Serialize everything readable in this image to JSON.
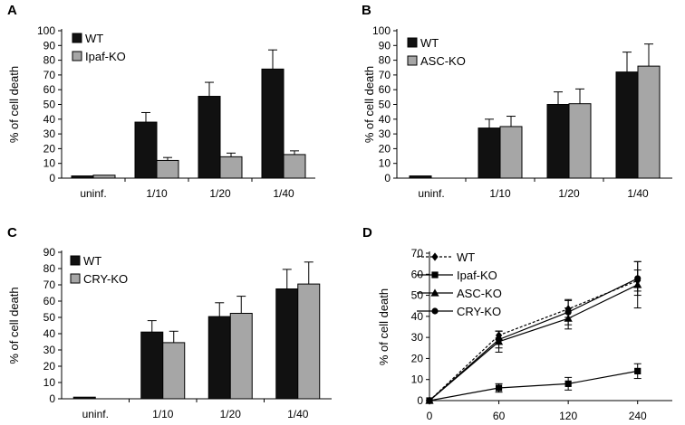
{
  "chart_data": [
    {
      "panel": "A",
      "type": "bar",
      "ylabel": "% of cell death",
      "ylim": [
        0,
        100
      ],
      "yticks": [
        0,
        10,
        20,
        30,
        40,
        50,
        60,
        70,
        80,
        90,
        100
      ],
      "categories": [
        "uninf.",
        "1/10",
        "1/20",
        "1/40"
      ],
      "legend_position": "top-left",
      "series": [
        {
          "name": "WT",
          "color": "#111111",
          "values": [
            1.5,
            38,
            55.5,
            74
          ],
          "errors": [
            0,
            6.5,
            9.5,
            13
          ]
        },
        {
          "name": "Ipaf-KO",
          "color": "#a6a6a6",
          "values": [
            2,
            12,
            14.5,
            16
          ],
          "errors": [
            0,
            2,
            2.5,
            2.5
          ]
        }
      ]
    },
    {
      "panel": "B",
      "type": "bar",
      "ylabel": "% of cell death",
      "ylim": [
        0,
        100
      ],
      "yticks": [
        0,
        10,
        20,
        30,
        40,
        50,
        60,
        70,
        80,
        90,
        100
      ],
      "categories": [
        "uninf.",
        "1/10",
        "1/20",
        "1/40"
      ],
      "legend_position": "top-left",
      "series": [
        {
          "name": "WT",
          "color": "#111111",
          "values": [
            1.5,
            34,
            50,
            72
          ],
          "errors": [
            0,
            6,
            8.5,
            13.5
          ]
        },
        {
          "name": "ASC-KO",
          "color": "#a6a6a6",
          "values": [
            null,
            35,
            50.5,
            76
          ],
          "errors": [
            0,
            7,
            10,
            15
          ]
        }
      ]
    },
    {
      "panel": "C",
      "type": "bar",
      "ylabel": "% of cell death",
      "ylim": [
        0,
        90
      ],
      "yticks": [
        0,
        10,
        20,
        30,
        40,
        50,
        60,
        70,
        80,
        90
      ],
      "categories": [
        "uninf.",
        "1/10",
        "1/20",
        "1/40"
      ],
      "legend_position": "top-left",
      "series": [
        {
          "name": "WT",
          "color": "#111111",
          "values": [
            1,
            41,
            50.5,
            67.5
          ],
          "errors": [
            0,
            7,
            8.5,
            12
          ]
        },
        {
          "name": "CRY-KO",
          "color": "#a6a6a6",
          "values": [
            null,
            34.5,
            52.5,
            70.5
          ],
          "errors": [
            0,
            7,
            10.5,
            13.5
          ]
        }
      ]
    },
    {
      "panel": "D",
      "type": "line",
      "ylabel": "% of cell death",
      "ylim": [
        0,
        70
      ],
      "yticks": [
        0,
        10,
        20,
        30,
        40,
        50,
        60,
        70
      ],
      "x": [
        0,
        60,
        120,
        240
      ],
      "xticks": [
        "0",
        "60",
        "120",
        "240"
      ],
      "legend_position": "top-left",
      "series": [
        {
          "name": "WT",
          "marker": "diamond",
          "dashed": true,
          "values": [
            0,
            31,
            43.5,
            57
          ],
          "errors": [
            0,
            2,
            4,
            5
          ]
        },
        {
          "name": "Ipaf-KO",
          "marker": "square",
          "dashed": false,
          "values": [
            0,
            6,
            8,
            14
          ],
          "errors": [
            0,
            2,
            3,
            3.5
          ]
        },
        {
          "name": "ASC-KO",
          "marker": "triangle",
          "dashed": false,
          "values": [
            0,
            28,
            39,
            55
          ],
          "errors": [
            0,
            5,
            5,
            11
          ]
        },
        {
          "name": "CRY-KO",
          "marker": "circle",
          "dashed": false,
          "values": [
            0,
            29,
            42,
            58
          ],
          "errors": [
            0,
            4,
            6,
            8
          ]
        }
      ]
    }
  ]
}
